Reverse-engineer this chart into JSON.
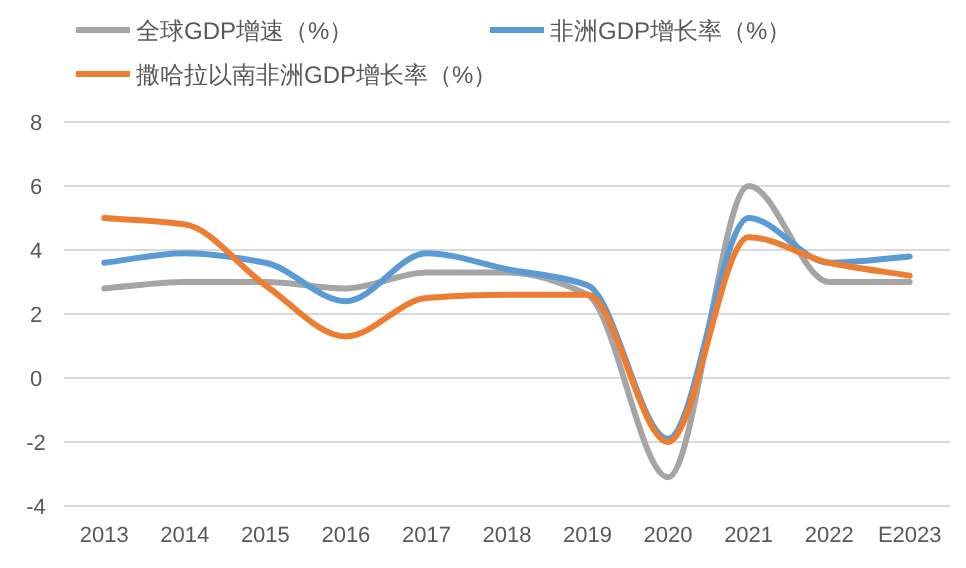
{
  "chart_data": {
    "type": "line",
    "categories": [
      "2013",
      "2014",
      "2015",
      "2016",
      "2017",
      "2018",
      "2019",
      "2020",
      "2021",
      "2022",
      "E2023"
    ],
    "series": [
      {
        "name": "全球GDP增速（%）",
        "color": "#a5a5a5",
        "values": [
          2.8,
          3.0,
          3.0,
          2.8,
          3.3,
          3.3,
          2.6,
          -3.1,
          6.0,
          3.0,
          3.0
        ]
      },
      {
        "name": "非洲GDP增长率（%）",
        "color": "#5b9bd5",
        "values": [
          3.6,
          3.9,
          3.6,
          2.4,
          3.9,
          3.4,
          2.9,
          -1.9,
          5.0,
          3.6,
          3.8
        ]
      },
      {
        "name": "撒哈拉以南非洲GDP增长率（%）",
        "color": "#ed7d31",
        "values": [
          5.0,
          4.8,
          2.9,
          1.3,
          2.5,
          2.6,
          2.6,
          -2.0,
          4.4,
          3.6,
          3.2
        ]
      }
    ],
    "ylim": [
      -4,
      8
    ],
    "yticks": [
      -4,
      -2,
      0,
      2,
      4,
      6,
      8
    ],
    "grid": "y",
    "legend": "top"
  }
}
